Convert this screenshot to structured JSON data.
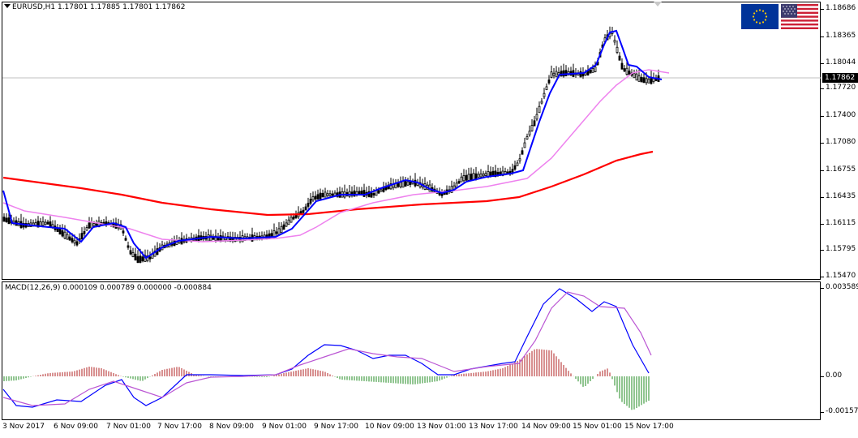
{
  "header": {
    "symbol_info": "EURUSD,H1  1.17801 1.17885 1.17801 1.17862",
    "indicator_info": "MACD(12,26,9) 0.000109 0.000789 0.000000 -0.000884"
  },
  "price_axis": {
    "ticks": [
      "1.18686",
      "1.18365",
      "1.18044",
      "1.17720",
      "1.17400",
      "1.17080",
      "1.16755",
      "1.16435",
      "1.16115",
      "1.15795",
      "1.15470"
    ],
    "current_price": "1.17862"
  },
  "macd_axis": {
    "ticks": [
      "0.003589",
      "0.00",
      "-0.001579"
    ]
  },
  "time_axis": {
    "labels": [
      "3 Nov 2017",
      "6 Nov 09:00",
      "7 Nov 01:00",
      "7 Nov 17:00",
      "8 Nov 09:00",
      "9 Nov 01:00",
      "9 Nov 17:00",
      "10 Nov 09:00",
      "13 Nov 01:00",
      "13 Nov 17:00",
      "14 Nov 09:00",
      "15 Nov 01:00",
      "15 Nov 17:00"
    ]
  },
  "flags": {
    "left": "eu-flag-icon",
    "right": "us-flag-icon"
  },
  "colors": {
    "ma_fast": "#0000ff",
    "ma_mid": "#ee82ee",
    "ma_slow": "#ff0000",
    "candles": "#000000",
    "macd_hist_pos": "#b22222",
    "macd_hist_neg": "#228b22",
    "macd_main": "#0000ff",
    "macd_signal": "#ba55d3"
  }
}
